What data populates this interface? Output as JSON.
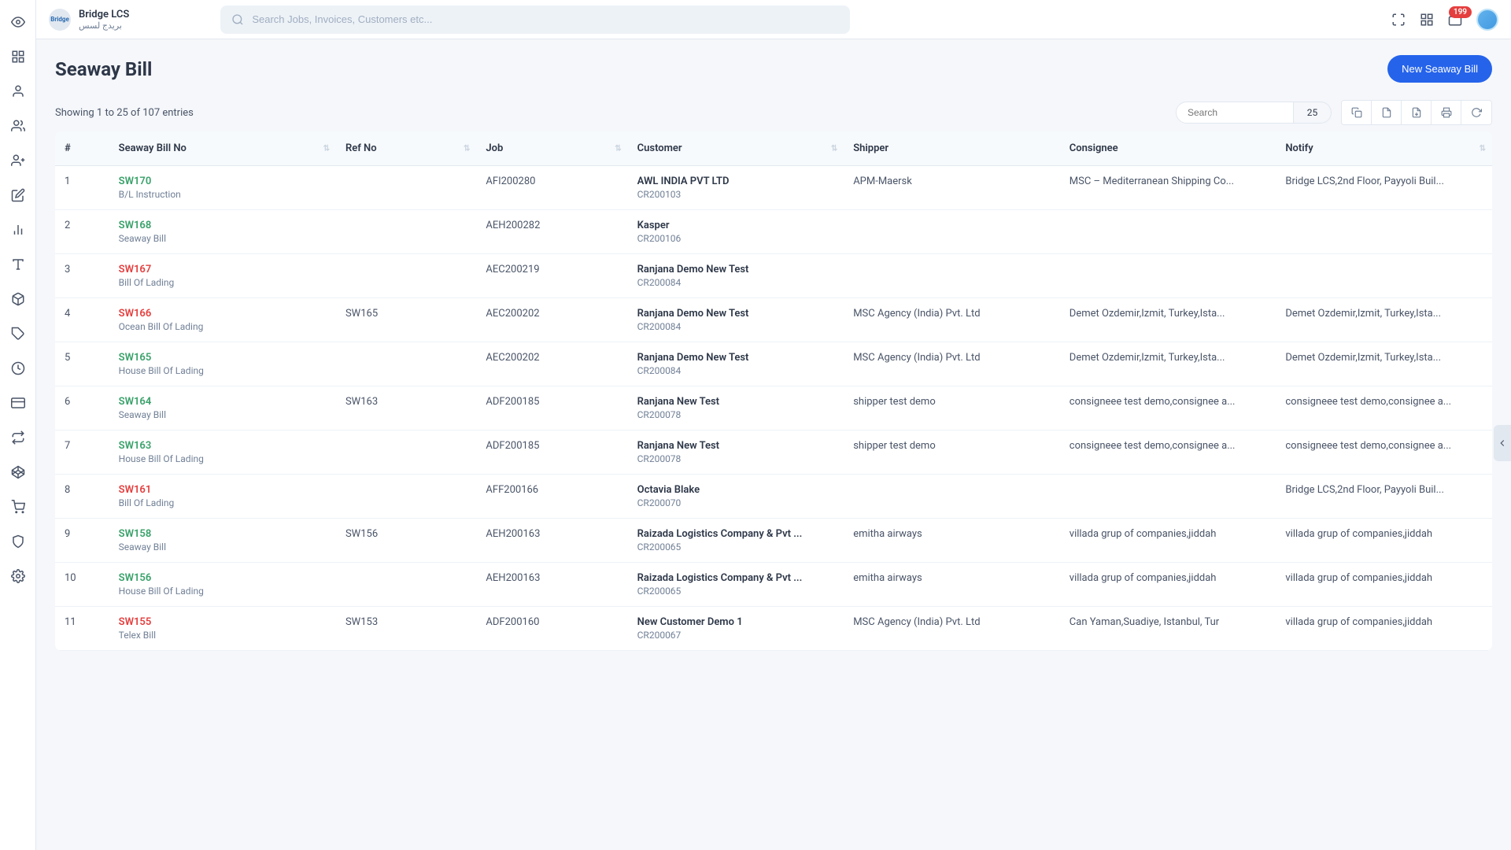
{
  "brand": {
    "title": "Bridge LCS",
    "subtitle": "بريدج لسس",
    "logoText": "Bridge"
  },
  "search": {
    "placeholder": "Search Jobs, Invoices, Customers etc..."
  },
  "notifications": {
    "count": "199"
  },
  "page": {
    "title": "Seaway Bill",
    "newButton": "New Seaway Bill",
    "entriesInfo": "Showing 1 to 25 of 107 entries",
    "tableSearchPlaceholder": "Search",
    "perPage": "25"
  },
  "columns": {
    "num": "#",
    "billNo": "Seaway Bill No",
    "refNo": "Ref No",
    "job": "Job",
    "customer": "Customer",
    "shipper": "Shipper",
    "consignee": "Consignee",
    "notify": "Notify"
  },
  "rows": [
    {
      "num": "1",
      "billNo": "SW170",
      "billColor": "green",
      "billType": "B/L Instruction",
      "refNo": "",
      "job": "AFI200280",
      "customerName": "AWL INDIA PVT LTD",
      "customerCode": "CR200103",
      "shipper": "APM-Maersk",
      "consignee": "MSC – Mediterranean Shipping Co...",
      "notify": "Bridge LCS,2nd Floor, Payyoli Buil..."
    },
    {
      "num": "2",
      "billNo": "SW168",
      "billColor": "green",
      "billType": "Seaway Bill",
      "refNo": "",
      "job": "AEH200282",
      "customerName": "Kasper",
      "customerCode": "CR200106",
      "shipper": "",
      "consignee": "",
      "notify": ""
    },
    {
      "num": "3",
      "billNo": "SW167",
      "billColor": "red",
      "billType": "Bill Of Lading",
      "refNo": "",
      "job": "AEC200219",
      "customerName": "Ranjana Demo New Test",
      "customerCode": "CR200084",
      "shipper": "",
      "consignee": "",
      "notify": ""
    },
    {
      "num": "4",
      "billNo": "SW166",
      "billColor": "red",
      "billType": "Ocean Bill Of Lading",
      "refNo": "SW165",
      "job": "AEC200202",
      "customerName": "Ranjana Demo New Test",
      "customerCode": "CR200084",
      "shipper": "MSC Agency (India) Pvt. Ltd",
      "consignee": "Demet Ozdemir,Izmit, Turkey,Ista...",
      "notify": "Demet Ozdemir,Izmit, Turkey,Ista..."
    },
    {
      "num": "5",
      "billNo": "SW165",
      "billColor": "green",
      "billType": "House Bill Of Lading",
      "refNo": "",
      "job": "AEC200202",
      "customerName": "Ranjana Demo New Test",
      "customerCode": "CR200084",
      "shipper": "MSC Agency (India) Pvt. Ltd",
      "consignee": "Demet Ozdemir,Izmit, Turkey,Ista...",
      "notify": "Demet Ozdemir,Izmit, Turkey,Ista..."
    },
    {
      "num": "6",
      "billNo": "SW164",
      "billColor": "green",
      "billType": "Seaway Bill",
      "refNo": "SW163",
      "job": "ADF200185",
      "customerName": "Ranjana New Test",
      "customerCode": "CR200078",
      "shipper": "shipper test demo",
      "consignee": "consigneee test demo,consignee a...",
      "notify": "consigneee test demo,consignee a..."
    },
    {
      "num": "7",
      "billNo": "SW163",
      "billColor": "green",
      "billType": "House Bill Of Lading",
      "refNo": "",
      "job": "ADF200185",
      "customerName": "Ranjana New Test",
      "customerCode": "CR200078",
      "shipper": "shipper test demo",
      "consignee": "consigneee test demo,consignee a...",
      "notify": "consigneee test demo,consignee a..."
    },
    {
      "num": "8",
      "billNo": "SW161",
      "billColor": "red",
      "billType": "Bill Of Lading",
      "refNo": "",
      "job": "AFF200166",
      "customerName": "Octavia Blake",
      "customerCode": "CR200070",
      "shipper": "",
      "consignee": "",
      "notify": "Bridge LCS,2nd Floor, Payyoli Buil..."
    },
    {
      "num": "9",
      "billNo": "SW158",
      "billColor": "green",
      "billType": "Seaway Bill",
      "refNo": "SW156",
      "job": "AEH200163",
      "customerName": "Raizada Logistics Company & Pvt ...",
      "customerCode": "CR200065",
      "shipper": "emitha airways",
      "consignee": "villada grup of companies,jiddah",
      "notify": "villada grup of companies,jiddah"
    },
    {
      "num": "10",
      "billNo": "SW156",
      "billColor": "green",
      "billType": "House Bill Of Lading",
      "refNo": "",
      "job": "AEH200163",
      "customerName": "Raizada Logistics Company & Pvt ...",
      "customerCode": "CR200065",
      "shipper": "emitha airways",
      "consignee": "villada grup of companies,jiddah",
      "notify": "villada grup of companies,jiddah"
    },
    {
      "num": "11",
      "billNo": "SW155",
      "billColor": "red",
      "billType": "Telex Bill",
      "refNo": "SW153",
      "job": "ADF200160",
      "customerName": "New Customer Demo 1",
      "customerCode": "CR200067",
      "shipper": "MSC Agency (India) Pvt. Ltd",
      "consignee": "Can Yaman,Suadiye, Istanbul, Tur",
      "notify": "villada grup of companies,jiddah"
    }
  ]
}
